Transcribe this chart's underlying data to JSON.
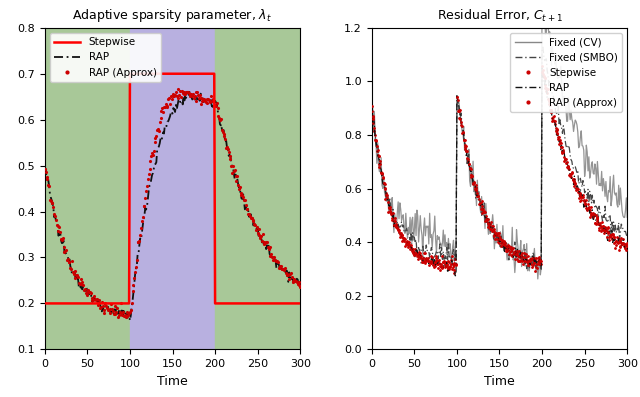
{
  "left_title": "Adaptive sparsity parameter, $\\lambda_t$",
  "right_title": "Residual Error, $C_{t+1}$",
  "xlabel": "Time",
  "left_ylim": [
    0.1,
    0.8
  ],
  "right_ylim": [
    0.0,
    1.2
  ],
  "xlim": [
    0,
    300
  ],
  "bg_green": "#a8c898",
  "bg_blue": "#b8b0e0",
  "stepwise_left_color": "#ff0000",
  "rap_color": "#111111",
  "rap_approx_color": "#cc0000",
  "fixed_cv_color": "#888888",
  "fixed_smbo_color": "#444444",
  "stepwise_right_color": "#cc0000"
}
